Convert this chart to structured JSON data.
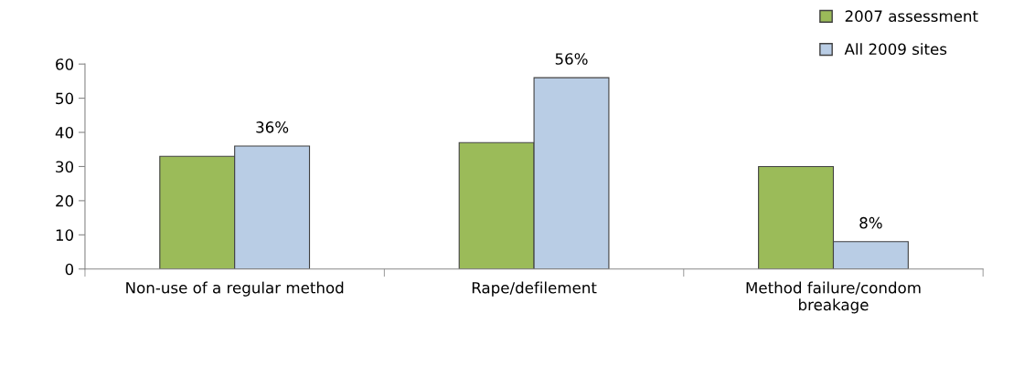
{
  "chart_data": {
    "type": "bar",
    "categories": [
      "Non-use of a regular method",
      "Rape/defilement",
      "Method failure/condom breakage"
    ],
    "series": [
      {
        "name": "2007 assessment",
        "color": "#9bbb59",
        "values": [
          33,
          37,
          30
        ]
      },
      {
        "name": "All 2009 sites",
        "color": "#b9cde5",
        "values": [
          36,
          56,
          8
        ],
        "value_labels": [
          "36%",
          "56%",
          "8%"
        ]
      }
    ],
    "ylim": [
      0,
      60
    ],
    "yticks": [
      0,
      10,
      20,
      30,
      40,
      50,
      60
    ],
    "grid": false,
    "legend": "top right"
  }
}
